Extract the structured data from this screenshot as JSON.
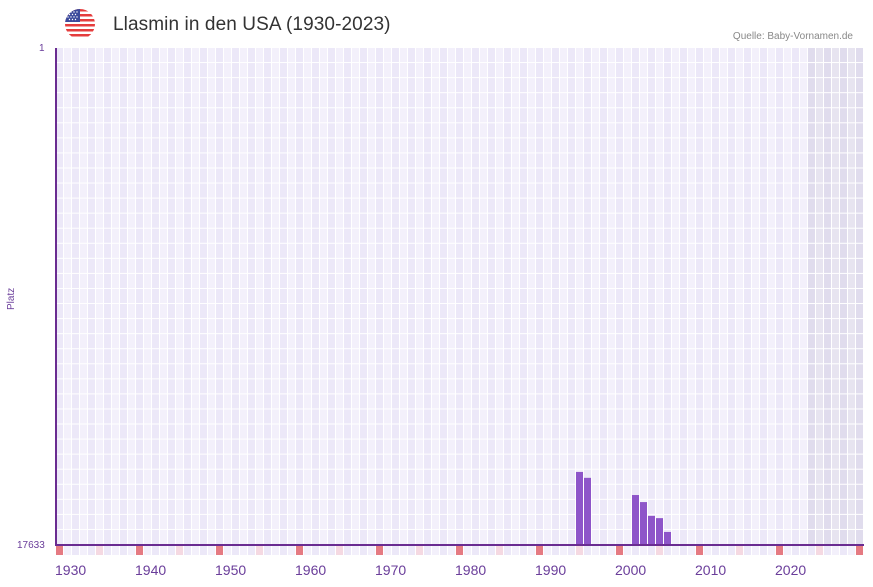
{
  "header": {
    "title": "Llasmin in den USA (1930-2023)",
    "flag_icon": "us-flag-icon",
    "source": "Quelle: Baby-Vornamen.de"
  },
  "colors": {
    "bar": "#8e55c9",
    "axis": "#6a2c91",
    "grid_a": "#ece8f8",
    "grid_b": "#f3f0fb",
    "grid_future_a": "#e0dced",
    "grid_future_b": "#e7e4f0",
    "decade_marker": "#e57a82",
    "half_decade_marker": "#f5d9e2",
    "label": "#6a3d9a"
  },
  "chart_data": {
    "type": "bar",
    "title": "Llasmin in den USA (1930-2023)",
    "xlabel": "",
    "ylabel": "Platz",
    "y_axis_inverted": true,
    "ylim": [
      1,
      17633
    ],
    "xlim": [
      1930,
      2030
    ],
    "x_tick_labels": [
      "1930",
      "1940",
      "1950",
      "1960",
      "1970",
      "1980",
      "1990",
      "2000",
      "2010",
      "2020"
    ],
    "y_tick_labels": [
      "1",
      "17633"
    ],
    "grid": true,
    "future_shaded_from": 2024,
    "categories": [
      "1995",
      "1996",
      "2002",
      "2003",
      "2004",
      "2005",
      "2006"
    ],
    "values": [
      15040,
      15250,
      15860,
      16110,
      16600,
      16680,
      17170
    ],
    "series": [
      {
        "name": "Platz",
        "x": [
          1995,
          1996,
          2002,
          2003,
          2004,
          2005,
          2006
        ],
        "values": [
          15040,
          15250,
          15860,
          16110,
          16600,
          16680,
          17170
        ]
      }
    ]
  }
}
